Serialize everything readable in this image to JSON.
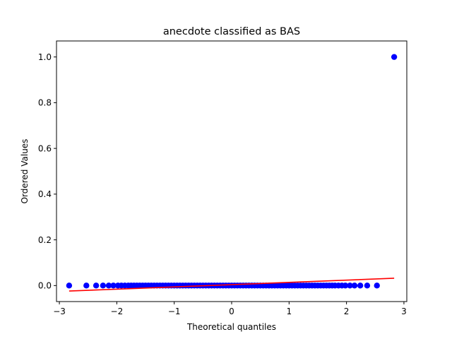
{
  "chart_data": {
    "type": "scatter",
    "title": "anecdote classified as BAS",
    "xlabel": "Theoretical quantiles",
    "ylabel": "Ordered Values",
    "xlim": [
      -3.05,
      3.05
    ],
    "ylim": [
      -0.07,
      1.07
    ],
    "xticks": [
      -3,
      -2,
      -1,
      0,
      1,
      2,
      3
    ],
    "xtick_labels": [
      "−3",
      "−2",
      "−1",
      "0",
      "1",
      "2",
      "3"
    ],
    "yticks": [
      0.0,
      0.2,
      0.4,
      0.6,
      0.8,
      1.0
    ],
    "ytick_labels": [
      "0.0",
      "0.2",
      "0.4",
      "0.6",
      "0.8",
      "1.0"
    ],
    "grid": false,
    "colors": {
      "points": "#0000ff",
      "fit_line": "#ff0000"
    },
    "series": [
      {
        "kind": "points",
        "x": [
          -2.83,
          -2.53,
          -2.36,
          -2.24,
          -2.14,
          -2.06,
          -1.98,
          -1.92,
          -1.86,
          -1.8,
          -1.75,
          -1.7,
          -1.65,
          -1.6,
          -1.55,
          -1.5,
          -1.45,
          -1.4,
          -1.35,
          -1.3,
          -1.25,
          -1.2,
          -1.15,
          -1.1,
          -1.05,
          -1.0,
          -0.95,
          -0.9,
          -0.85,
          -0.8,
          -0.75,
          -0.7,
          -0.65,
          -0.6,
          -0.55,
          -0.5,
          -0.45,
          -0.4,
          -0.35,
          -0.3,
          -0.25,
          -0.2,
          -0.15,
          -0.1,
          -0.05,
          0.0,
          0.05,
          0.1,
          0.15,
          0.2,
          0.25,
          0.3,
          0.35,
          0.4,
          0.45,
          0.5,
          0.55,
          0.6,
          0.65,
          0.7,
          0.75,
          0.8,
          0.85,
          0.9,
          0.95,
          1.0,
          1.05,
          1.1,
          1.15,
          1.2,
          1.25,
          1.3,
          1.35,
          1.4,
          1.45,
          1.5,
          1.55,
          1.6,
          1.65,
          1.7,
          1.75,
          1.8,
          1.86,
          1.92,
          1.98,
          2.06,
          2.14,
          2.24,
          2.36,
          2.53,
          2.83
        ],
        "y": [
          0.0,
          0.0,
          0.0,
          0.0,
          0.0,
          0.0,
          0.0,
          0.0,
          0.0,
          0.0,
          0.0,
          0.0,
          0.0,
          0.0,
          0.0,
          0.0,
          0.0,
          0.0,
          0.0,
          0.0,
          0.0,
          0.0,
          0.0,
          0.0,
          0.0,
          0.0,
          0.0,
          0.0,
          0.0,
          0.0,
          0.0,
          0.0,
          0.0,
          0.0,
          0.0,
          0.0,
          0.0,
          0.0,
          0.0,
          0.0,
          0.0,
          0.0,
          0.0,
          0.0,
          0.0,
          0.0,
          0.0,
          0.0,
          0.0,
          0.0,
          0.0,
          0.0,
          0.0,
          0.0,
          0.0,
          0.0,
          0.0,
          0.0,
          0.0,
          0.0,
          0.0,
          0.0,
          0.0,
          0.0,
          0.0,
          0.0,
          0.0,
          0.0,
          0.0,
          0.0,
          0.0,
          0.0,
          0.0,
          0.0,
          0.0,
          0.0,
          0.0,
          0.0,
          0.0,
          0.0,
          0.0,
          0.0,
          0.0,
          0.0,
          0.0,
          0.0,
          0.0,
          0.0,
          0.0,
          0.0,
          1.0
        ]
      },
      {
        "kind": "line",
        "x": [
          -2.83,
          2.83
        ],
        "y": [
          -0.024,
          0.032
        ]
      }
    ]
  }
}
